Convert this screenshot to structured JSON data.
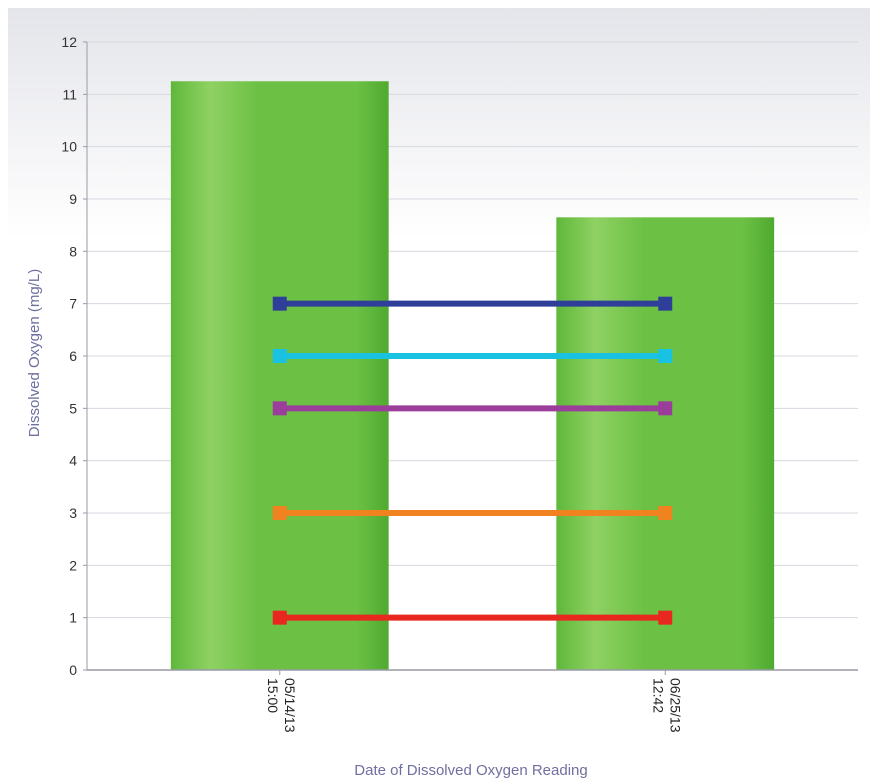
{
  "chart_data": {
    "type": "bar",
    "title": "",
    "xlabel": "Date of Dissolved Oxygen Reading",
    "ylabel": "Dissolved Oxygen (mg/L)",
    "ylim": [
      0,
      12
    ],
    "yticks": [
      "0",
      "1",
      "2",
      "3",
      "4",
      "5",
      "6",
      "7",
      "8",
      "9",
      "10",
      "11",
      "12"
    ],
    "grid": true,
    "legend": "none",
    "categories": [
      {
        "line1": "05/14/13",
        "line2": "15:00"
      },
      {
        "line1": "06/25/13",
        "line2": "12:42"
      }
    ],
    "values": [
      11.25,
      8.65
    ],
    "bar_color": "#6cc144",
    "reference_lines": [
      {
        "value": 7,
        "color": "#2f3f99"
      },
      {
        "value": 6,
        "color": "#19c2e0"
      },
      {
        "value": 5,
        "color": "#9b3d9b"
      },
      {
        "value": 3,
        "color": "#f08220"
      },
      {
        "value": 1,
        "color": "#e8271f"
      }
    ]
  }
}
